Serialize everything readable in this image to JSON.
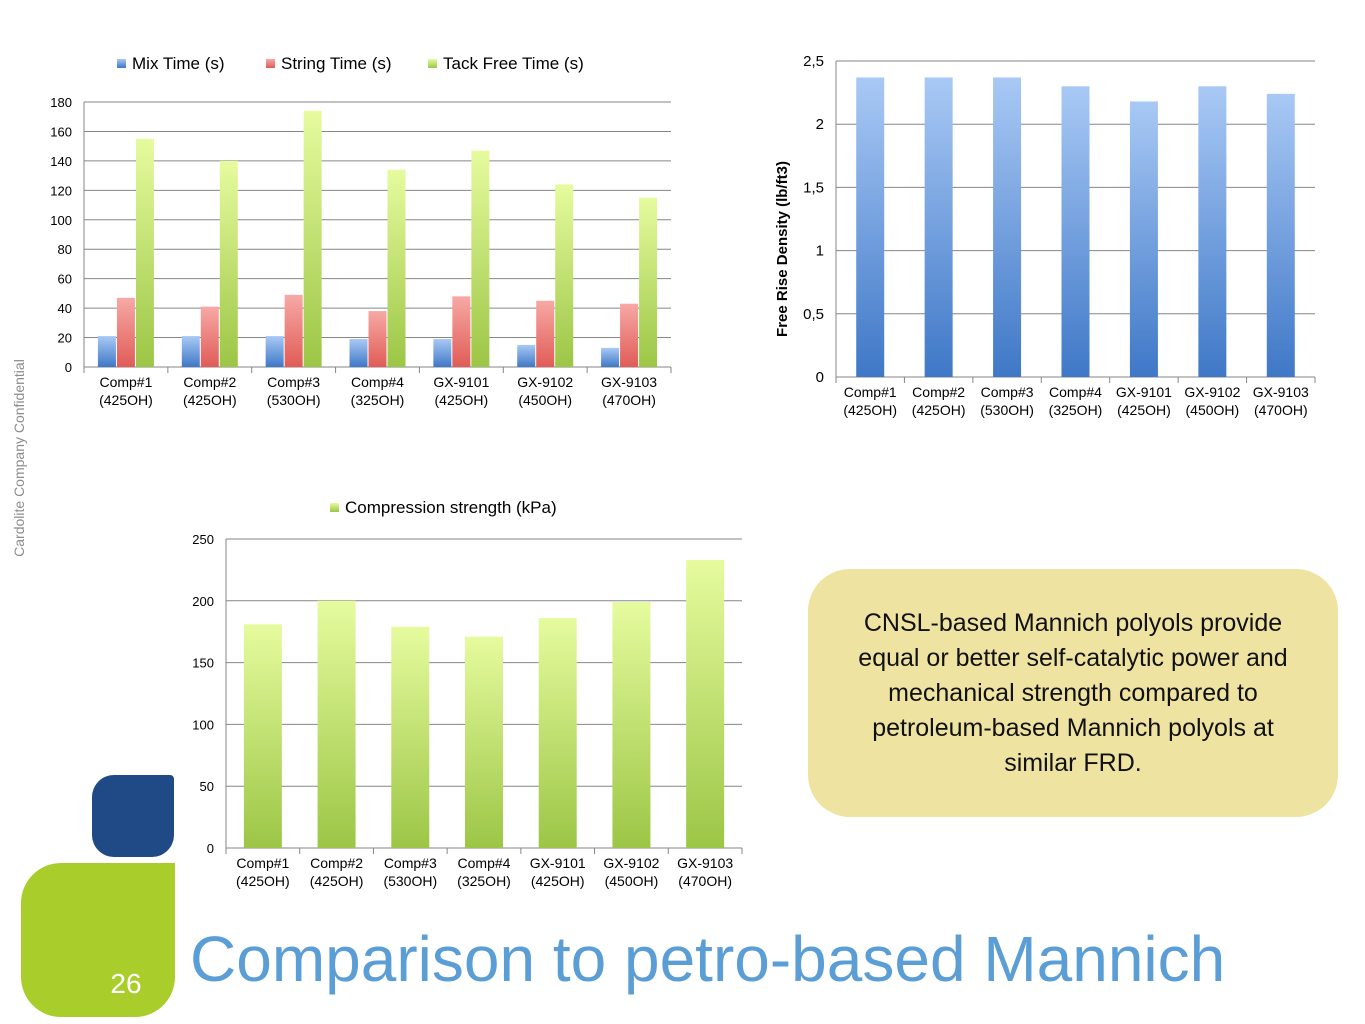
{
  "slide": {
    "title": "Comparison to petro-based Mannich",
    "page_number": "26",
    "side_label": "Cardolite Company Confidential",
    "callout_text": "CNSL-based Mannich polyols provide equal or better self-catalytic power and mechanical strength compared to petroleum-based Mannich polyols at similar FRD.",
    "accent_colors": {
      "blue": "#1f4a86",
      "green": "#a9ce2c",
      "title": "#5b9ed6",
      "callout": "#efe3a2"
    }
  },
  "chart_data": [
    {
      "type": "bar",
      "legend_position": "top",
      "grid": true,
      "categories": [
        [
          "Comp#1",
          "(425OH)"
        ],
        [
          "Comp#2",
          "(425OH)"
        ],
        [
          "Comp#3",
          "(530OH)"
        ],
        [
          "Comp#4",
          "(325OH)"
        ],
        [
          "GX-9101",
          "(425OH)"
        ],
        [
          "GX-9102",
          "(450OH)"
        ],
        [
          "GX-9103",
          "(470OH)"
        ]
      ],
      "ylim": [
        0,
        180
      ],
      "yticks": [
        "0",
        "20",
        "40",
        "60",
        "80",
        "100",
        "120",
        "140",
        "160",
        "180"
      ],
      "series": [
        {
          "name": "Mix Time (s)",
          "color": "#4f81bd",
          "values": [
            21,
            21,
            21,
            19,
            19,
            15,
            13
          ]
        },
        {
          "name": "String Time (s)",
          "color": "#c0504d",
          "values": [
            47,
            41,
            49,
            38,
            48,
            45,
            43
          ]
        },
        {
          "name": "Tack Free Time (s)",
          "color": "#9bbb59",
          "values": [
            155,
            140,
            174,
            134,
            147,
            124,
            115
          ]
        }
      ]
    },
    {
      "type": "bar",
      "grid": true,
      "ylabel": "Free Rise Density (lb/ft3)",
      "categories": [
        [
          "Comp#1",
          "(425OH)"
        ],
        [
          "Comp#2",
          "(425OH)"
        ],
        [
          "Comp#3",
          "(530OH)"
        ],
        [
          "Comp#4",
          "(325OH)"
        ],
        [
          "GX-9101",
          "(425OH)"
        ],
        [
          "GX-9102",
          "(450OH)"
        ],
        [
          "GX-9103",
          "(470OH)"
        ]
      ],
      "ylim": [
        0,
        2.5
      ],
      "yticks": [
        "0",
        "0,5",
        "1",
        "1,5",
        "2",
        "2,5"
      ],
      "series": [
        {
          "color": "#4f81bd",
          "values": [
            2.37,
            2.37,
            2.37,
            2.3,
            2.18,
            2.3,
            2.24
          ]
        }
      ]
    },
    {
      "type": "bar",
      "legend_position": "top",
      "grid": true,
      "categories": [
        [
          "Comp#1",
          "(425OH)"
        ],
        [
          "Comp#2",
          "(425OH)"
        ],
        [
          "Comp#3",
          "(530OH)"
        ],
        [
          "Comp#4",
          "(325OH)"
        ],
        [
          "GX-9101",
          "(425OH)"
        ],
        [
          "GX-9102",
          "(450OH)"
        ],
        [
          "GX-9103",
          "(470OH)"
        ]
      ],
      "ylim": [
        0,
        250
      ],
      "yticks": [
        "0",
        "50",
        "100",
        "150",
        "200",
        "250"
      ],
      "series": [
        {
          "name": "Compression strength (kPa)",
          "color": "#9bbb59",
          "values": [
            181,
            200,
            179,
            171,
            186,
            199,
            233
          ]
        }
      ]
    }
  ]
}
